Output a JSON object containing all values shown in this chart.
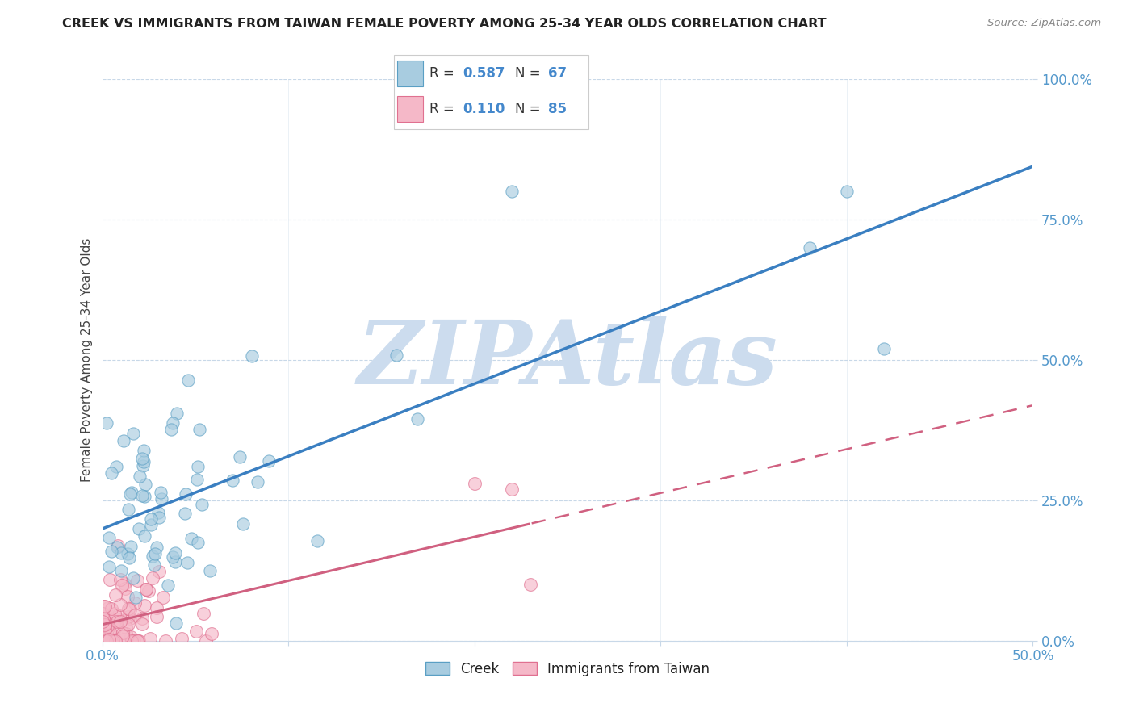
{
  "title": "CREEK VS IMMIGRANTS FROM TAIWAN FEMALE POVERTY AMONG 25-34 YEAR OLDS CORRELATION CHART",
  "source": "Source: ZipAtlas.com",
  "ylabel": "Female Poverty Among 25-34 Year Olds",
  "xlim": [
    0.0,
    0.5
  ],
  "ylim": [
    0.0,
    1.0
  ],
  "yticks": [
    0.0,
    0.25,
    0.5,
    0.75,
    1.0
  ],
  "ytick_labels": [
    "0.0%",
    "25.0%",
    "50.0%",
    "75.0%",
    "100.0%"
  ],
  "creek_color": "#a8cce0",
  "creek_edge_color": "#5a9fc4",
  "taiwan_color": "#f5b8c8",
  "taiwan_edge_color": "#e07090",
  "creek_line_color": "#3a7fc1",
  "taiwan_line_color": "#d06080",
  "creek_R": 0.587,
  "creek_N": 67,
  "taiwan_R": 0.11,
  "taiwan_N": 85,
  "watermark": "ZIPAtlas",
  "watermark_color": "#ccdcee",
  "legend_label_creek": "Creek",
  "legend_label_taiwan": "Immigrants from Taiwan",
  "background_color": "#ffffff",
  "grid_color": "#c8d8e8",
  "title_color": "#222222",
  "source_color": "#888888",
  "axis_label_color": "#444444",
  "tick_color": "#5599cc",
  "legend_R_color": "#4488cc"
}
